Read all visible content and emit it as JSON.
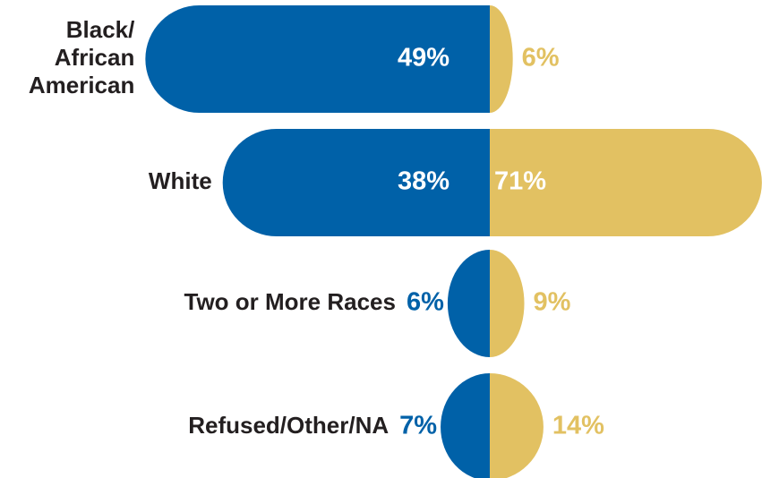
{
  "chart_data": {
    "type": "diverging-bar",
    "categories": [
      "Black/\nAfrican\nAmerican",
      "White",
      "Two or More Races",
      "Refused/Other/NA"
    ],
    "series": [
      {
        "color": "#0061a8",
        "values": [
          49,
          38,
          6,
          7
        ],
        "value_labels": [
          "49%",
          "38%",
          "6%",
          "7%"
        ]
      },
      {
        "color": "#e2c162",
        "values": [
          6,
          71,
          9,
          14
        ],
        "value_labels": [
          "6%",
          "71%",
          "9%",
          "14%"
        ]
      }
    ]
  }
}
